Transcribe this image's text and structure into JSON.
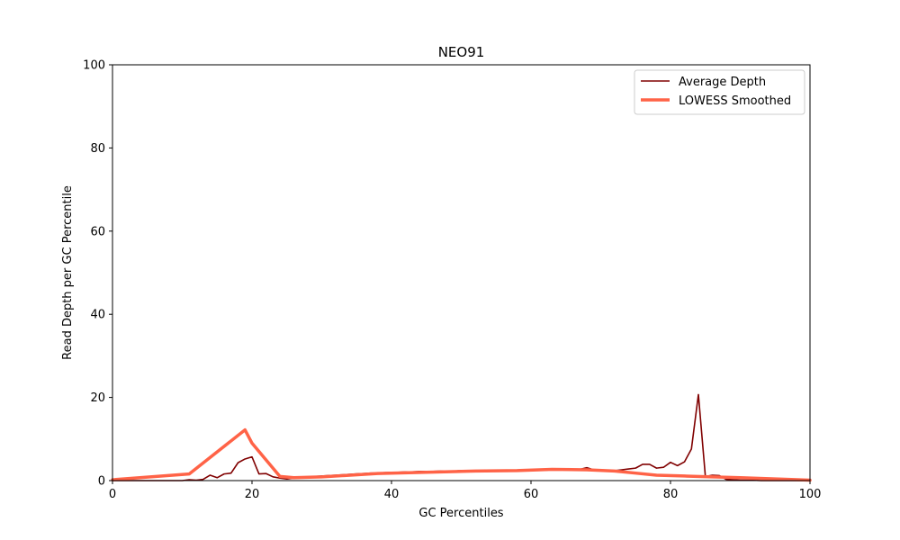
{
  "chart_data": {
    "type": "line",
    "title": "NEO91",
    "xlabel": "GC Percentiles",
    "ylabel": "Read Depth per GC Percentile",
    "xlim": [
      0,
      100
    ],
    "ylim": [
      0,
      100
    ],
    "xticks": [
      "0",
      "20",
      "40",
      "60",
      "80",
      "100"
    ],
    "yticks": [
      "0",
      "20",
      "40",
      "60",
      "80",
      "100"
    ],
    "grid": false,
    "legend": "top-right",
    "series": [
      {
        "name": "Average Depth",
        "color": "#800000",
        "x": [
          0,
          1,
          2,
          3,
          4,
          5,
          6,
          7,
          8,
          9,
          10,
          11,
          12,
          13,
          14,
          15,
          16,
          17,
          18,
          19,
          20,
          21,
          22,
          23,
          24,
          25,
          26,
          27,
          28,
          29,
          30,
          31,
          32,
          33,
          34,
          35,
          36,
          37,
          38,
          39,
          40,
          41,
          42,
          43,
          44,
          45,
          46,
          47,
          48,
          49,
          50,
          51,
          52,
          53,
          54,
          55,
          56,
          57,
          58,
          59,
          60,
          61,
          62,
          63,
          64,
          65,
          66,
          67,
          68,
          69,
          70,
          71,
          72,
          73,
          74,
          75,
          76,
          77,
          78,
          79,
          80,
          81,
          82,
          83,
          84,
          85,
          86,
          87,
          88,
          89,
          90,
          91,
          92,
          93,
          94,
          95,
          96,
          97,
          98,
          99,
          100
        ],
        "values": [
          0,
          0,
          0,
          0,
          0,
          0,
          0,
          0,
          0,
          0,
          0,
          0.2,
          0.1,
          0.3,
          1.3,
          0.7,
          1.6,
          1.8,
          4.3,
          5.2,
          5.7,
          1.6,
          1.7,
          0.9,
          0.6,
          0.4,
          0.6,
          0.8,
          0.9,
          1.0,
          1.1,
          1.2,
          1.3,
          1.4,
          1.5,
          1.6,
          1.7,
          1.8,
          1.8,
          1.9,
          2.0,
          2.0,
          2.1,
          2.1,
          2.2,
          2.2,
          2.2,
          2.3,
          2.3,
          2.3,
          2.4,
          2.4,
          2.4,
          2.4,
          2.4,
          2.4,
          2.4,
          2.5,
          2.5,
          2.5,
          2.5,
          2.5,
          2.5,
          2.6,
          2.6,
          2.6,
          2.6,
          2.7,
          3.1,
          2.6,
          2.4,
          2.3,
          2.4,
          2.6,
          2.8,
          3.0,
          3.9,
          3.9,
          3.0,
          3.2,
          4.4,
          3.6,
          4.5,
          7.6,
          20.7,
          1.0,
          1.3,
          1.2,
          0.3,
          0.2,
          0.1,
          0.1,
          0.1,
          0,
          0,
          0,
          0,
          0,
          0,
          0,
          0
        ]
      },
      {
        "name": "LOWESS Smoothed",
        "color": "#ff6347",
        "x": [
          0,
          11,
          19,
          20,
          24,
          26,
          30,
          38,
          45,
          52,
          58,
          63,
          68,
          72,
          75,
          78,
          82,
          86,
          90,
          100
        ],
        "values": [
          0.2,
          1.6,
          12.2,
          9.0,
          1.0,
          0.7,
          0.9,
          1.7,
          2.0,
          2.3,
          2.4,
          2.7,
          2.6,
          2.3,
          1.8,
          1.3,
          1.1,
          0.9,
          0.7,
          0.1
        ]
      }
    ]
  }
}
